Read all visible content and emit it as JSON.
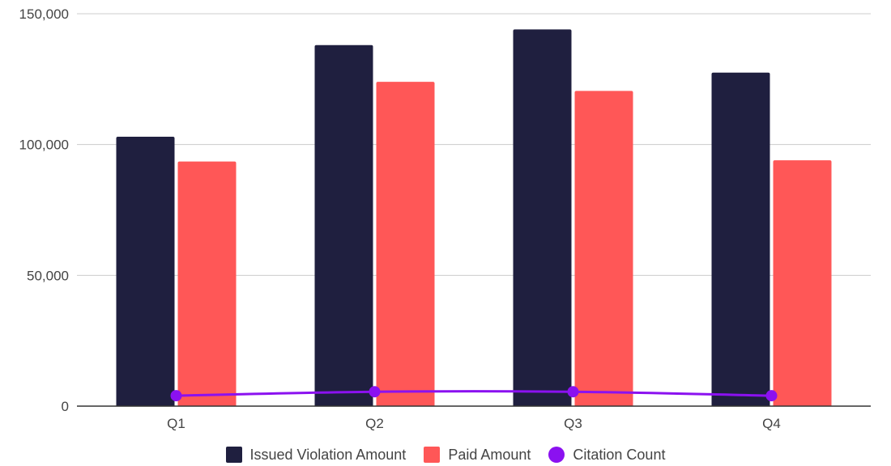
{
  "chart_data": {
    "type": "bar",
    "categories": [
      "Q1",
      "Q2",
      "Q3",
      "Q4"
    ],
    "series": [
      {
        "name": "Issued Violation Amount",
        "kind": "bar",
        "color": "#1f1f3f",
        "values": [
          103000,
          138000,
          144000,
          127500
        ]
      },
      {
        "name": "Paid Amount",
        "kind": "bar",
        "color": "#ff5757",
        "values": [
          93500,
          124000,
          120500,
          94000
        ]
      },
      {
        "name": "Citation Count",
        "kind": "line",
        "color": "#8b11f0",
        "values": [
          4000,
          5500,
          5500,
          4000
        ]
      }
    ],
    "ylim": [
      0,
      150000
    ],
    "yticks": [
      0,
      50000,
      100000,
      150000
    ],
    "ytick_labels": [
      "0",
      "50,000",
      "100,000",
      "150,000"
    ],
    "grid": true,
    "legend_position": "bottom"
  }
}
